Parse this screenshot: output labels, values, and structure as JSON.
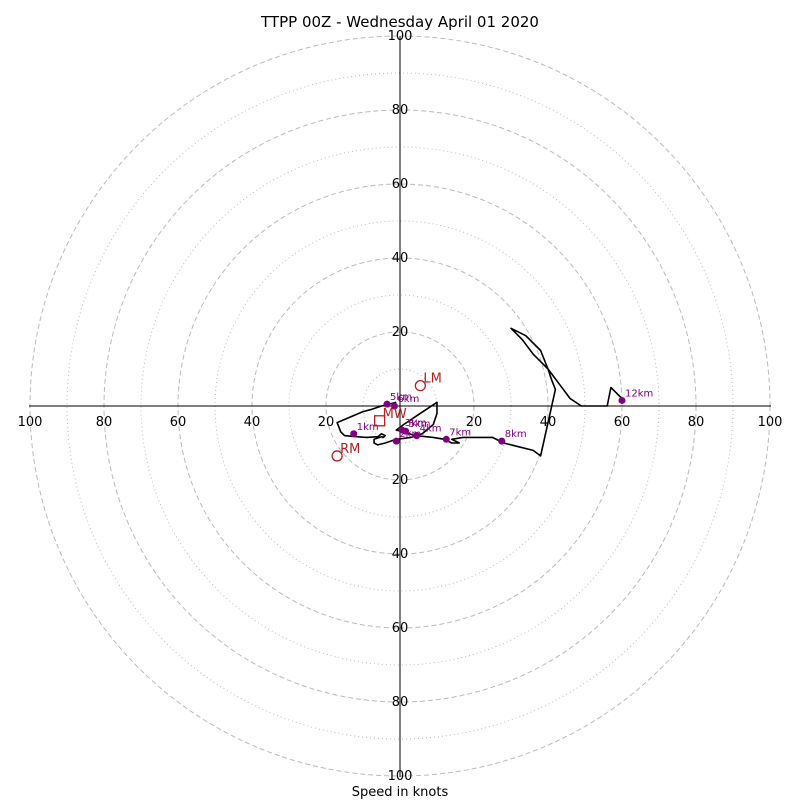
{
  "chart_data": {
    "type": "hodograph",
    "title": "TTPP 00Z - Wednesday April 01 2020",
    "xlabel": "Speed in knots",
    "ring_max": 100,
    "major_rings": [
      20,
      40,
      60,
      80,
      100
    ],
    "minor_rings": [
      10,
      30,
      50,
      70,
      90
    ],
    "tick_labels": {
      "up": [
        "20",
        "40",
        "60",
        "80",
        "100"
      ],
      "down": [
        "20",
        "40",
        "60",
        "80",
        "100"
      ],
      "left": [
        "20",
        "40",
        "60",
        "80",
        "100"
      ],
      "right": [
        "20",
        "40",
        "60",
        "80",
        "100"
      ]
    },
    "trace": [
      [
        -1,
        1
      ],
      [
        -3,
        0.5
      ],
      [
        -5,
        0
      ],
      [
        -8,
        -1
      ],
      [
        -10,
        -1.5
      ],
      [
        -17,
        -4.5
      ],
      [
        -16,
        -7
      ],
      [
        -15,
        -8
      ],
      [
        -13,
        -8.2
      ],
      [
        -9,
        -8.5
      ],
      [
        -6,
        -8.3
      ],
      [
        -5,
        -7.5
      ],
      [
        -4,
        -8
      ],
      [
        -4.5,
        -8.5
      ],
      [
        -5,
        -8.3
      ],
      [
        -7,
        -9
      ],
      [
        -7,
        -10
      ],
      [
        -6,
        -10.5
      ],
      [
        -4,
        -10
      ],
      [
        -1,
        -9
      ],
      [
        3,
        -8.5
      ],
      [
        6,
        -7.5
      ],
      [
        9,
        -5
      ],
      [
        10,
        -2
      ],
      [
        10,
        1
      ],
      [
        7,
        -1
      ],
      [
        4,
        -3
      ],
      [
        1,
        -5
      ],
      [
        -1,
        -6.5
      ],
      [
        1,
        -7
      ],
      [
        4,
        -8
      ],
      [
        9,
        -8.5
      ],
      [
        12,
        -9
      ],
      [
        14,
        -10
      ],
      [
        16,
        -10
      ],
      [
        14,
        -9
      ],
      [
        17,
        -8.5
      ],
      [
        20,
        -8.5
      ],
      [
        23,
        -8.5
      ],
      [
        25,
        -8.5
      ],
      [
        28,
        -10
      ],
      [
        32,
        -11
      ],
      [
        36,
        -12
      ],
      [
        38,
        -13.5
      ],
      [
        42,
        4.5
      ],
      [
        41,
        7
      ],
      [
        40,
        10
      ],
      [
        38,
        15
      ],
      [
        34,
        19
      ],
      [
        30,
        21
      ],
      [
        33,
        18
      ],
      [
        36,
        14
      ],
      [
        40,
        10
      ],
      [
        43,
        6
      ],
      [
        46,
        2
      ],
      [
        49,
        0
      ],
      [
        52,
        0
      ],
      [
        56,
        0
      ],
      [
        57,
        5
      ],
      [
        58,
        4
      ],
      [
        60,
        2
      ]
    ],
    "height_markers": [
      {
        "label": "1km",
        "u": -12.5,
        "v": -7.5
      },
      {
        "label": "2km",
        "u": -1.0,
        "v": -9.5
      },
      {
        "label": "3km",
        "u": 0.5,
        "v": -6.5
      },
      {
        "label": "4km",
        "u": 4.5,
        "v": -8.0
      },
      {
        "label": "5km",
        "u": 1.5,
        "v": -6.8
      },
      {
        "label": "7km",
        "u": 12.5,
        "v": -9.0
      },
      {
        "label": "8km",
        "u": 27.5,
        "v": -9.5
      },
      {
        "label": "12km",
        "u": 60.0,
        "v": 1.5
      },
      {
        "label": "5km",
        "u": -3.5,
        "v": 0.5
      },
      {
        "label": "6km",
        "u": -1.5,
        "v": 0.0
      }
    ],
    "storm_motion": [
      {
        "label": "LM",
        "u": 5.5,
        "v": 5.5,
        "marker": "circle"
      },
      {
        "label": "RM",
        "u": -17.0,
        "v": -13.5,
        "marker": "circle"
      },
      {
        "label": "MW",
        "u": -5.5,
        "v": -4.0,
        "marker": "square"
      }
    ],
    "colors": {
      "trace": "#000000",
      "height_markers": "#800080",
      "storm_motion": "#b22222",
      "rings": "#bbbbbb",
      "axes": "#000000"
    }
  }
}
